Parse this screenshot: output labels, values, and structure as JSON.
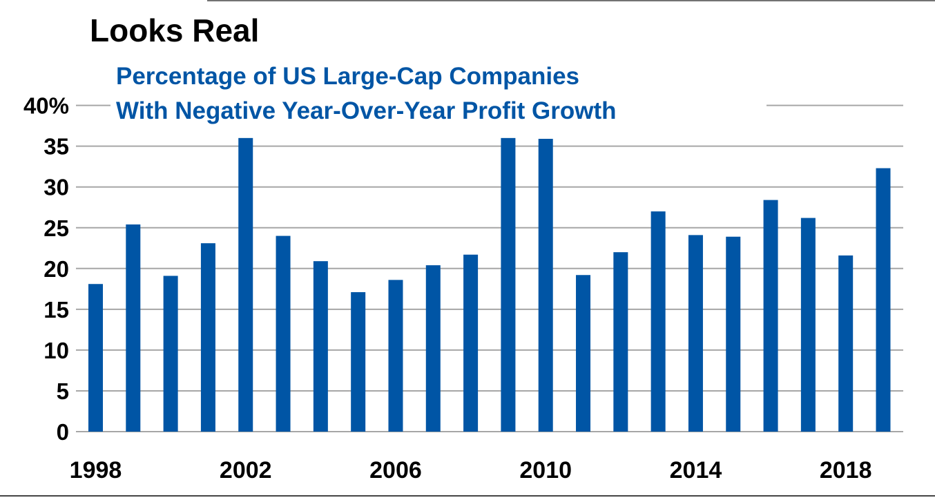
{
  "chart_data": {
    "type": "bar",
    "title": "Looks Real",
    "subtitle": [
      "Percentage of US Large-Cap Companies",
      "With Negative Year-Over-Year Profit Growth"
    ],
    "xlabel": "",
    "ylabel": "",
    "categories": [
      1998,
      1999,
      2000,
      2001,
      2002,
      2003,
      2004,
      2005,
      2006,
      2007,
      2008,
      2009,
      2010,
      2011,
      2012,
      2013,
      2014,
      2015,
      2016,
      2017,
      2018,
      2019
    ],
    "values": [
      18.1,
      25.4,
      19.1,
      23.1,
      36.0,
      24.0,
      20.9,
      17.1,
      18.6,
      20.4,
      21.7,
      36.0,
      35.9,
      19.2,
      22.0,
      27.0,
      24.1,
      23.9,
      28.4,
      26.2,
      21.6,
      32.3
    ],
    "x_tick_labels": [
      "1998",
      "2002",
      "2006",
      "2010",
      "2014",
      "2018"
    ],
    "y_ticks": [
      0,
      5,
      10,
      15,
      20,
      25,
      30,
      35,
      40
    ],
    "y_tick_labels": [
      "0",
      "5",
      "10",
      "15",
      "20",
      "25",
      "30",
      "35",
      "40%"
    ],
    "ylim": [
      0,
      40
    ],
    "grid": true,
    "bar_color": "#0055a5",
    "grid_color": "#a6a6a6"
  }
}
